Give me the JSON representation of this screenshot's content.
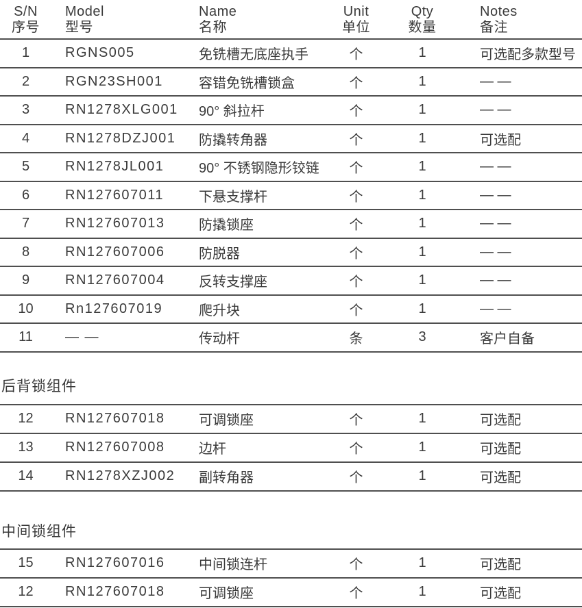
{
  "page": {
    "background": "#ffffff",
    "text_color": "#3a3a3a",
    "line_color": "#4f4f4f"
  },
  "table": {
    "columns": [
      {
        "key": "sn",
        "label_en": "S/N",
        "label_zh": "序号"
      },
      {
        "key": "model",
        "label_en": "Model",
        "label_zh": "型号"
      },
      {
        "key": "name",
        "label_en": "Name",
        "label_zh": "名称"
      },
      {
        "key": "unit",
        "label_en": "Unit",
        "label_zh": "单位"
      },
      {
        "key": "qty",
        "label_en": "Qty",
        "label_zh": "数量"
      },
      {
        "key": "notes",
        "label_en": "Notes",
        "label_zh": "备注"
      }
    ],
    "sections": [
      {
        "title": "",
        "rows": [
          {
            "sn": "1",
            "model": "RGNS005",
            "name": "免铣槽无底座执手",
            "unit": "个",
            "qty": "1",
            "notes": "可选配多款型号"
          },
          {
            "sn": "2",
            "model": "RGN23SH001",
            "name": "容错免铣槽锁盒",
            "unit": "个",
            "qty": "1",
            "notes": "— —"
          },
          {
            "sn": "3",
            "model": "RN1278XLG001",
            "name": "90° 斜拉杆",
            "unit": "个",
            "qty": "1",
            "notes": "— —"
          },
          {
            "sn": "4",
            "model": "RN1278DZJ001",
            "name": "防撬转角器",
            "unit": "个",
            "qty": "1",
            "notes": "可选配"
          },
          {
            "sn": "5",
            "model": "RN1278JL001",
            "name": "90° 不锈钢隐形铰链",
            "unit": "个",
            "qty": "1",
            "notes": "— —"
          },
          {
            "sn": "6",
            "model": "RN127607011",
            "name": "下悬支撑杆",
            "unit": "个",
            "qty": "1",
            "notes": "— —"
          },
          {
            "sn": "7",
            "model": "RN127607013",
            "name": "防撬锁座",
            "unit": "个",
            "qty": "1",
            "notes": "— —"
          },
          {
            "sn": "8",
            "model": "RN127607006",
            "name": "防脱器",
            "unit": "个",
            "qty": "1",
            "notes": "— —"
          },
          {
            "sn": "9",
            "model": "RN127607004",
            "name": "反转支撑座",
            "unit": "个",
            "qty": "1",
            "notes": "— —"
          },
          {
            "sn": "10",
            "model": "Rn127607019",
            "name": "爬升块",
            "unit": "个",
            "qty": "1",
            "notes": "— —"
          },
          {
            "sn": "11",
            "model": "— —",
            "name": "传动杆",
            "unit": "条",
            "qty": "3",
            "notes": "客户自备"
          }
        ]
      },
      {
        "title": "后背锁组件",
        "rows": [
          {
            "sn": "12",
            "model": "RN127607018",
            "name": "可调锁座",
            "unit": "个",
            "qty": "1",
            "notes": "可选配"
          },
          {
            "sn": "13",
            "model": "RN127607008",
            "name": "边杆",
            "unit": "个",
            "qty": "1",
            "notes": "可选配"
          },
          {
            "sn": "14",
            "model": "RN1278XZJ002",
            "name": "副转角器",
            "unit": "个",
            "qty": "1",
            "notes": "可选配"
          }
        ]
      },
      {
        "title": "中间锁组件",
        "rows": [
          {
            "sn": "15",
            "model": "RN127607016",
            "name": "中间锁连杆",
            "unit": "个",
            "qty": "1",
            "notes": "可选配"
          },
          {
            "sn": "12",
            "model": "RN127607018",
            "name": "可调锁座",
            "unit": "个",
            "qty": "1",
            "notes": "可选配"
          }
        ]
      }
    ]
  }
}
